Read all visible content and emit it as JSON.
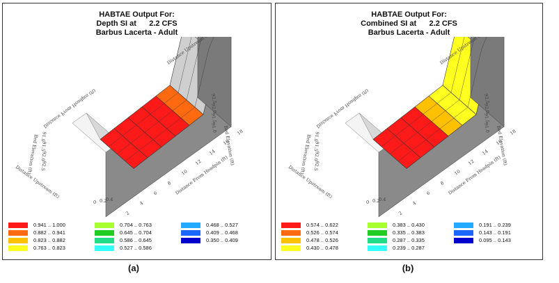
{
  "chart_data": [
    {
      "type": "surface3d",
      "panel_label": "(a)",
      "title": [
        "HABTAE Output For:",
        "Depth SI at      2.2 CFS",
        "Barbus Lacerta - Adult"
      ],
      "axes": {
        "x_label": "Distance From Headpin (ft)",
        "y_label": "Distance Upstream (ft)",
        "z_label": "Bed Elevation (ft)",
        "x_ticks": [
          "0",
          "2",
          "4",
          "6",
          "8",
          "10",
          "12",
          "14",
          "16",
          "18"
        ],
        "y_ticks": [
          "0",
          "0.2",
          "0.4"
        ],
        "z_ticks": [
          "91.0",
          "91.5",
          "92.0",
          "92.5"
        ]
      },
      "channel_cells": [
        {
          "x": 4,
          "class": "0.941 .. 1.000"
        },
        {
          "x": 6,
          "class": "0.941 .. 1.000"
        },
        {
          "x": 8,
          "class": "0.941 .. 1.000"
        },
        {
          "x": 10,
          "class": "0.941 .. 1.000"
        },
        {
          "x": 12,
          "class": "0.882 .. 0.941"
        },
        {
          "x": 14,
          "class": "none"
        }
      ],
      "legend": [
        {
          "label": "0.941 .. 1.000",
          "color": "#ff1a1a"
        },
        {
          "label": "0.882 .. 0.941",
          "color": "#ff6a10"
        },
        {
          "label": "0.823 .. 0.882",
          "color": "#ffc000"
        },
        {
          "label": "0.763 .. 0.823",
          "color": "#ffff20"
        },
        {
          "label": "0.704 .. 0.763",
          "color": "#a8ff30"
        },
        {
          "label": "0.645 .. 0.704",
          "color": "#22cc22"
        },
        {
          "label": "0.586 .. 0.645",
          "color": "#22dd88"
        },
        {
          "label": "0.527 .. 0.586",
          "color": "#33ffff"
        },
        {
          "label": "0.468 .. 0.527",
          "color": "#22aaff"
        },
        {
          "label": "0.409 .. 0.468",
          "color": "#1a66ff"
        },
        {
          "label": "0.350 .. 0.409",
          "color": "#0000cc"
        }
      ]
    },
    {
      "type": "surface3d",
      "panel_label": "(b)",
      "title": [
        "HABTAE Output For:",
        "Combined SI at      2.2 CFS",
        "Barbus Lacerta - Adult"
      ],
      "axes": {
        "x_label": "Distance From Headpin (ft)",
        "y_label": "Distance Upstream (ft)",
        "z_label": "Bed Elevation (ft)",
        "x_ticks": [
          "0",
          "2",
          "4",
          "6",
          "8",
          "10",
          "12",
          "14",
          "16",
          "18"
        ],
        "y_ticks": [
          "0",
          "0.2",
          "0.4"
        ],
        "z_ticks": [
          "91.0",
          "91.5",
          "92.0",
          "92.5"
        ]
      },
      "channel_cells": [
        {
          "x": 4,
          "class": "0.574 .. 0.622"
        },
        {
          "x": 6,
          "class": "0.574 .. 0.622"
        },
        {
          "x": 8,
          "class": "0.574 .. 0.622"
        },
        {
          "x": 10,
          "class": "0.478 .. 0.526"
        },
        {
          "x": 12,
          "class": "0.430 .. 0.478"
        },
        {
          "x": 14,
          "class": "0.430 .. 0.478"
        }
      ],
      "legend": [
        {
          "label": "0.574 .. 0.622",
          "color": "#ff1a1a"
        },
        {
          "label": "0.526 .. 0.574",
          "color": "#ff6a10"
        },
        {
          "label": "0.478 .. 0.526",
          "color": "#ffc000"
        },
        {
          "label": "0.430 .. 0.478",
          "color": "#ffff20"
        },
        {
          "label": "0.383 .. 0.430",
          "color": "#a8ff30"
        },
        {
          "label": "0.335 .. 0.383",
          "color": "#22cc22"
        },
        {
          "label": "0.287 .. 0.335",
          "color": "#22dd88"
        },
        {
          "label": "0.239 .. 0.287",
          "color": "#33ffff"
        },
        {
          "label": "0.191 .. 0.239",
          "color": "#22aaff"
        },
        {
          "label": "0.143 .. 0.191",
          "color": "#1a66ff"
        },
        {
          "label": "0.095 .. 0.143",
          "color": "#0000cc"
        }
      ]
    }
  ]
}
